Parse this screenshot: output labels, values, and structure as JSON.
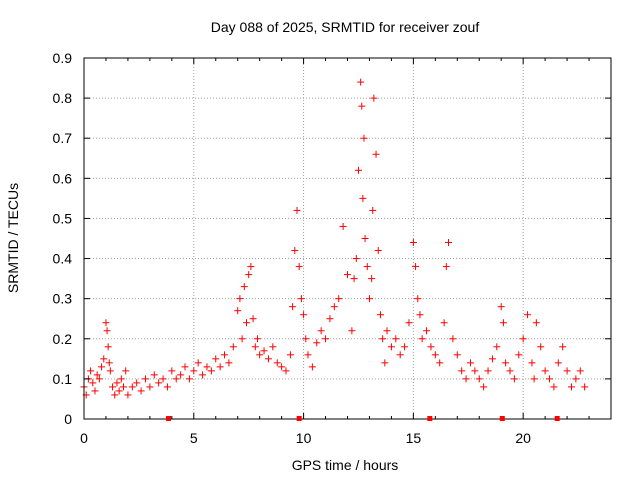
{
  "chart_data": {
    "type": "scatter",
    "title": "Day 088 of 2025, SRMTID for receiver zouf",
    "xlabel": "GPS time / hours",
    "ylabel": "SRMTID / TECUs",
    "xlim": [
      0,
      24
    ],
    "ylim": [
      0,
      0.9
    ],
    "grid": true,
    "marker": "+",
    "marker_color": "#ff0000",
    "x_ticks": [
      {
        "value": 0,
        "label": "0"
      },
      {
        "value": 5,
        "label": "5"
      },
      {
        "value": 10,
        "label": "10"
      },
      {
        "value": 15,
        "label": "15"
      },
      {
        "value": 20,
        "label": "20"
      }
    ],
    "y_ticks": [
      {
        "value": 0,
        "label": "0"
      },
      {
        "value": 0.1,
        "label": "0.1"
      },
      {
        "value": 0.2,
        "label": "0.2"
      },
      {
        "value": 0.3,
        "label": "0.3"
      },
      {
        "value": 0.4,
        "label": "0.4"
      },
      {
        "value": 0.5,
        "label": "0.5"
      },
      {
        "value": 0.6,
        "label": "0.6"
      },
      {
        "value": 0.7,
        "label": "0.7"
      },
      {
        "value": 0.8,
        "label": "0.8"
      },
      {
        "value": 0.9,
        "label": "0.9"
      }
    ],
    "baseline_markers": [
      3.85,
      9.8,
      15.75,
      19.05,
      21.55
    ],
    "series": [
      {
        "name": "SRMTID",
        "x": [
          0.0,
          0.1,
          0.2,
          0.3,
          0.4,
          0.5,
          0.6,
          0.7,
          0.8,
          0.9,
          1.0,
          1.05,
          1.1,
          1.15,
          1.2,
          1.3,
          1.4,
          1.5,
          1.6,
          1.7,
          1.8,
          1.9,
          2.0,
          2.2,
          2.4,
          2.6,
          2.8,
          3.0,
          3.2,
          3.4,
          3.6,
          3.8,
          4.0,
          4.2,
          4.4,
          4.6,
          4.8,
          5.0,
          5.2,
          5.4,
          5.6,
          5.8,
          6.0,
          6.2,
          6.4,
          6.6,
          6.8,
          7.0,
          7.1,
          7.2,
          7.3,
          7.4,
          7.5,
          7.6,
          7.7,
          7.8,
          7.9,
          8.0,
          8.2,
          8.4,
          8.6,
          8.8,
          9.0,
          9.2,
          9.4,
          9.5,
          9.6,
          9.7,
          9.8,
          9.9,
          10.0,
          10.1,
          10.2,
          10.4,
          10.6,
          10.8,
          11.0,
          11.2,
          11.4,
          11.6,
          11.8,
          12.0,
          12.2,
          12.3,
          12.4,
          12.5,
          12.6,
          12.65,
          12.7,
          12.75,
          12.8,
          12.9,
          13.0,
          13.1,
          13.15,
          13.2,
          13.3,
          13.4,
          13.5,
          13.6,
          13.7,
          13.8,
          14.0,
          14.2,
          14.4,
          14.6,
          14.8,
          15.0,
          15.1,
          15.2,
          15.3,
          15.4,
          15.6,
          15.8,
          16.0,
          16.2,
          16.4,
          16.5,
          16.6,
          16.8,
          17.0,
          17.2,
          17.4,
          17.6,
          17.8,
          18.0,
          18.2,
          18.4,
          18.6,
          18.8,
          19.0,
          19.1,
          19.2,
          19.4,
          19.6,
          19.8,
          20.0,
          20.2,
          20.4,
          20.5,
          20.6,
          20.8,
          21.0,
          21.2,
          21.4,
          21.6,
          21.8,
          22.0,
          22.2,
          22.4,
          22.6,
          22.8
        ],
        "y": [
          0.08,
          0.06,
          0.1,
          0.12,
          0.09,
          0.07,
          0.11,
          0.1,
          0.13,
          0.15,
          0.24,
          0.22,
          0.18,
          0.14,
          0.12,
          0.08,
          0.06,
          0.09,
          0.07,
          0.1,
          0.08,
          0.12,
          0.06,
          0.08,
          0.09,
          0.07,
          0.1,
          0.08,
          0.11,
          0.09,
          0.1,
          0.08,
          0.12,
          0.1,
          0.11,
          0.13,
          0.1,
          0.12,
          0.14,
          0.11,
          0.13,
          0.12,
          0.15,
          0.13,
          0.16,
          0.14,
          0.18,
          0.27,
          0.3,
          0.2,
          0.33,
          0.24,
          0.36,
          0.38,
          0.25,
          0.18,
          0.2,
          0.16,
          0.17,
          0.15,
          0.18,
          0.14,
          0.13,
          0.12,
          0.16,
          0.28,
          0.42,
          0.52,
          0.38,
          0.3,
          0.26,
          0.2,
          0.16,
          0.13,
          0.19,
          0.22,
          0.2,
          0.25,
          0.28,
          0.3,
          0.48,
          0.36,
          0.22,
          0.35,
          0.4,
          0.62,
          0.84,
          0.78,
          0.55,
          0.7,
          0.45,
          0.38,
          0.3,
          0.35,
          0.52,
          0.8,
          0.66,
          0.42,
          0.26,
          0.2,
          0.14,
          0.22,
          0.18,
          0.2,
          0.16,
          0.18,
          0.24,
          0.44,
          0.38,
          0.3,
          0.26,
          0.2,
          0.22,
          0.18,
          0.16,
          0.14,
          0.24,
          0.38,
          0.44,
          0.2,
          0.16,
          0.12,
          0.1,
          0.14,
          0.12,
          0.1,
          0.08,
          0.12,
          0.15,
          0.18,
          0.28,
          0.24,
          0.14,
          0.12,
          0.1,
          0.16,
          0.2,
          0.26,
          0.14,
          0.1,
          0.24,
          0.18,
          0.12,
          0.1,
          0.08,
          0.14,
          0.18,
          0.12,
          0.08,
          0.1,
          0.12,
          0.08
        ]
      }
    ]
  }
}
